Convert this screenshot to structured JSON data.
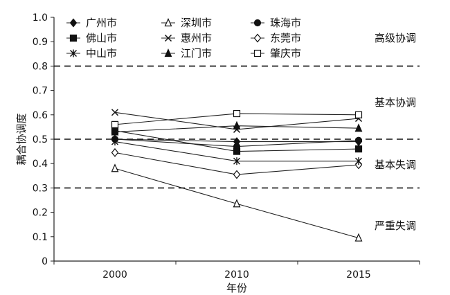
{
  "chart_data": {
    "type": "line",
    "xlabel": "年份",
    "ylabel": "耦合协调度",
    "x": [
      "2000",
      "2010",
      "2015"
    ],
    "yticks": [
      "0",
      "0.1",
      "0.2",
      "0.3",
      "0.4",
      "0.5",
      "0.6",
      "0.7",
      "0.8",
      "0.9",
      "1.0"
    ],
    "ylim": [
      0,
      1.0
    ],
    "grid": false,
    "legend_position": "top-left, inside plot",
    "thresholds": [
      {
        "value": 0.8,
        "style": "dashed"
      },
      {
        "value": 0.5,
        "style": "dashed"
      },
      {
        "value": 0.3,
        "style": "dashed"
      }
    ],
    "zone_labels": [
      {
        "text": "高级协调",
        "y": 0.915
      },
      {
        "text": "基本协调",
        "y": 0.65
      },
      {
        "text": "基本失调",
        "y": 0.395
      },
      {
        "text": "严重失调",
        "y": 0.145
      }
    ],
    "series": [
      {
        "name": "广州市",
        "marker": "diamond-filled",
        "values": [
          0.5,
          0.49,
          0.49
        ]
      },
      {
        "name": "深圳市",
        "marker": "triangle-open",
        "values": [
          0.38,
          0.235,
          0.095
        ]
      },
      {
        "name": "珠海市",
        "marker": "circle-filled",
        "values": [
          0.5,
          0.47,
          0.495
        ]
      },
      {
        "name": "佛山市",
        "marker": "square-filled",
        "values": [
          0.535,
          0.45,
          0.46
        ]
      },
      {
        "name": "惠州市",
        "marker": "x",
        "values": [
          0.61,
          0.54,
          0.585
        ]
      },
      {
        "name": "东莞市",
        "marker": "diamond-open",
        "values": [
          0.445,
          0.355,
          0.395
        ]
      },
      {
        "name": "中山市",
        "marker": "asterisk",
        "values": [
          0.49,
          0.41,
          0.41
        ]
      },
      {
        "name": "江门市",
        "marker": "triangle-filled",
        "values": [
          0.53,
          0.555,
          0.545
        ]
      },
      {
        "name": "肇庆市",
        "marker": "square-open",
        "values": [
          0.56,
          0.605,
          0.6
        ]
      }
    ]
  }
}
